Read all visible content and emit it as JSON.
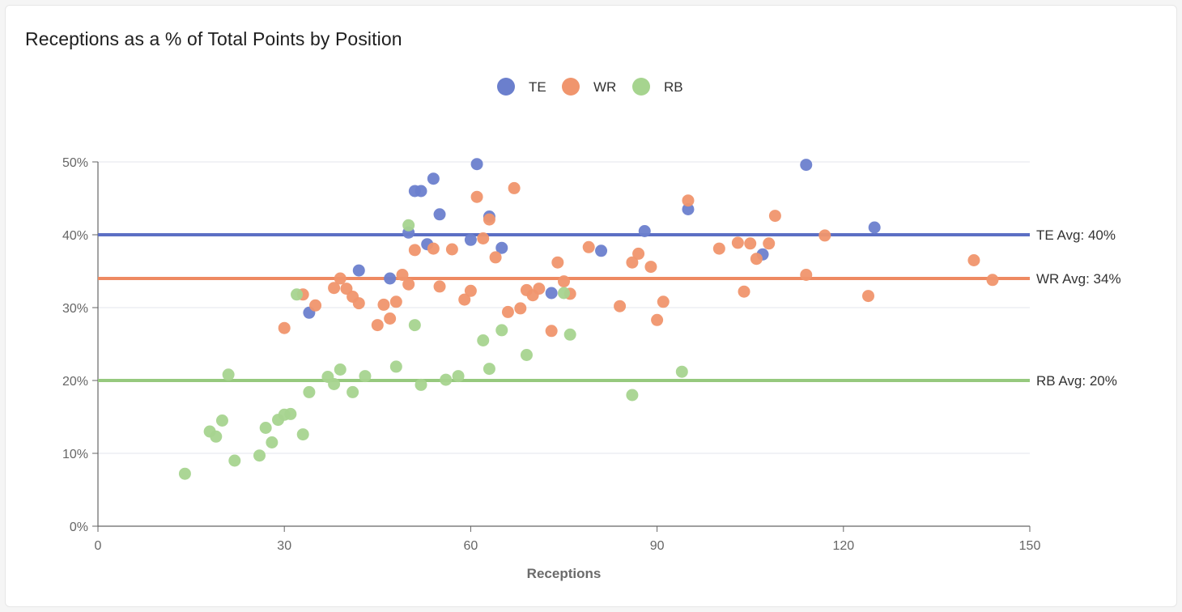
{
  "title": "Receptions as a % of Total Points by Position",
  "chart_data": {
    "type": "scatter",
    "title": "Receptions as a % of Total Points by Position",
    "xlabel": "Receptions",
    "ylabel": "",
    "xlim": [
      0,
      150
    ],
    "ylim": [
      0,
      50
    ],
    "x_ticks": [
      0,
      30,
      60,
      90,
      120,
      150
    ],
    "x_tick_labels": [
      "0",
      "30",
      "60",
      "90",
      "120",
      "150"
    ],
    "y_ticks": [
      0,
      10,
      20,
      30,
      40,
      50
    ],
    "y_tick_labels": [
      "0%",
      "10%",
      "20%",
      "30%",
      "40%",
      "50%"
    ],
    "grid": "horizontal",
    "legend_position": "top-center",
    "series": [
      {
        "name": "TE",
        "color": "#6b7fcd",
        "points": [
          [
            34,
            29.3
          ],
          [
            42,
            35.1
          ],
          [
            47,
            34
          ],
          [
            50,
            40.3
          ],
          [
            51,
            46
          ],
          [
            52,
            46
          ],
          [
            53,
            38.7
          ],
          [
            54,
            47.7
          ],
          [
            55,
            42.8
          ],
          [
            60,
            39.3
          ],
          [
            61,
            49.7
          ],
          [
            63,
            42.5
          ],
          [
            65,
            38.2
          ],
          [
            73,
            32
          ],
          [
            81,
            37.8
          ],
          [
            88,
            40.5
          ],
          [
            95,
            43.5
          ],
          [
            107,
            37.3
          ],
          [
            114,
            49.6
          ],
          [
            125,
            41
          ]
        ]
      },
      {
        "name": "WR",
        "color": "#f0956d",
        "points": [
          [
            30,
            27.2
          ],
          [
            33,
            31.8
          ],
          [
            35,
            30.3
          ],
          [
            38,
            32.7
          ],
          [
            39,
            34
          ],
          [
            40,
            32.6
          ],
          [
            41,
            31.5
          ],
          [
            42,
            30.6
          ],
          [
            45,
            27.6
          ],
          [
            46,
            30.4
          ],
          [
            47,
            28.5
          ],
          [
            48,
            30.8
          ],
          [
            49,
            34.5
          ],
          [
            50,
            33.2
          ],
          [
            51,
            37.9
          ],
          [
            54,
            38.1
          ],
          [
            55,
            32.9
          ],
          [
            57,
            38
          ],
          [
            59,
            31.1
          ],
          [
            60,
            32.3
          ],
          [
            61,
            45.2
          ],
          [
            62,
            39.5
          ],
          [
            63,
            42.1
          ],
          [
            64,
            36.9
          ],
          [
            66,
            29.4
          ],
          [
            67,
            46.4
          ],
          [
            68,
            29.9
          ],
          [
            69,
            32.4
          ],
          [
            70,
            31.7
          ],
          [
            71,
            32.6
          ],
          [
            73,
            26.8
          ],
          [
            74,
            36.2
          ],
          [
            75,
            33.6
          ],
          [
            76,
            31.9
          ],
          [
            79,
            38.3
          ],
          [
            84,
            30.2
          ],
          [
            86,
            36.2
          ],
          [
            87,
            37.4
          ],
          [
            89,
            35.6
          ],
          [
            90,
            28.3
          ],
          [
            91,
            30.8
          ],
          [
            95,
            44.7
          ],
          [
            100,
            38.1
          ],
          [
            103,
            38.9
          ],
          [
            104,
            32.2
          ],
          [
            105,
            38.8
          ],
          [
            106,
            36.7
          ],
          [
            108,
            38.8
          ],
          [
            109,
            42.6
          ],
          [
            114,
            34.5
          ],
          [
            117,
            39.9
          ],
          [
            124,
            31.6
          ],
          [
            141,
            36.5
          ],
          [
            144,
            33.8
          ]
        ]
      },
      {
        "name": "RB",
        "color": "#a6d48f",
        "points": [
          [
            14,
            7.2
          ],
          [
            18,
            13
          ],
          [
            19,
            12.3
          ],
          [
            20,
            14.5
          ],
          [
            21,
            20.8
          ],
          [
            22,
            9
          ],
          [
            26,
            9.7
          ],
          [
            27,
            13.5
          ],
          [
            28,
            11.5
          ],
          [
            29,
            14.6
          ],
          [
            30,
            15.3
          ],
          [
            31,
            15.4
          ],
          [
            32,
            31.8
          ],
          [
            33,
            12.6
          ],
          [
            34,
            18.4
          ],
          [
            37,
            20.5
          ],
          [
            38,
            19.5
          ],
          [
            39,
            21.5
          ],
          [
            41,
            18.4
          ],
          [
            43,
            20.6
          ],
          [
            48,
            21.9
          ],
          [
            50,
            41.3
          ],
          [
            51,
            27.6
          ],
          [
            52,
            19.4
          ],
          [
            56,
            20.1
          ],
          [
            58,
            20.6
          ],
          [
            62,
            25.5
          ],
          [
            63,
            21.6
          ],
          [
            65,
            26.9
          ],
          [
            69,
            23.5
          ],
          [
            75,
            32
          ],
          [
            76,
            26.3
          ],
          [
            86,
            18
          ],
          [
            94,
            21.2
          ]
        ]
      }
    ],
    "averages": [
      {
        "series": "TE",
        "value": 40,
        "label": "TE Avg: 40%",
        "color": "#5c6fc4"
      },
      {
        "series": "WR",
        "value": 34,
        "label": "WR Avg: 34%",
        "color": "#ee8a62"
      },
      {
        "series": "RB",
        "value": 20,
        "label": "RB Avg: 20%",
        "color": "#96c97e"
      }
    ]
  }
}
